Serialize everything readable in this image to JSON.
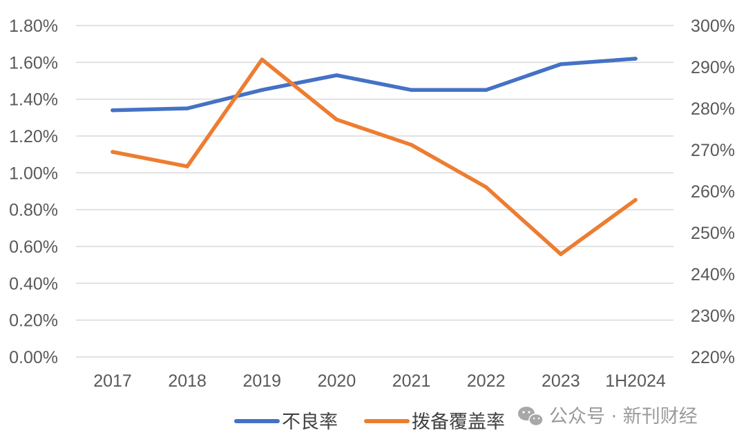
{
  "chart_data": {
    "type": "line",
    "categories": [
      "2017",
      "2018",
      "2019",
      "2020",
      "2021",
      "2022",
      "2023",
      "1H2024"
    ],
    "series": [
      {
        "name": "不良率",
        "axis": "left",
        "color": "#4472C4",
        "values": [
          1.34,
          1.35,
          1.45,
          1.53,
          1.45,
          1.45,
          1.59,
          1.62
        ]
      },
      {
        "name": "拨备覆盖率",
        "axis": "right",
        "color": "#ED7D31",
        "values": [
          269.5,
          266.0,
          291.8,
          277.3,
          271.2,
          261.0,
          244.8,
          257.9
        ]
      }
    ],
    "y_left": {
      "min": 0,
      "max": 1.8,
      "step": 0.2,
      "ticks": [
        "0.00%",
        "0.20%",
        "0.40%",
        "0.60%",
        "0.80%",
        "1.00%",
        "1.20%",
        "1.40%",
        "1.60%",
        "1.80%"
      ]
    },
    "y_right": {
      "min": 220,
      "max": 300,
      "step": 10,
      "ticks": [
        "220%",
        "230%",
        "240%",
        "250%",
        "260%",
        "270%",
        "280%",
        "290%",
        "300%"
      ]
    },
    "grid": true,
    "legend_position": "bottom",
    "title": "",
    "xlabel": "",
    "ylabel": ""
  },
  "watermark": {
    "icon": "wechat-icon",
    "text": "公众号 · 新刊财经"
  }
}
